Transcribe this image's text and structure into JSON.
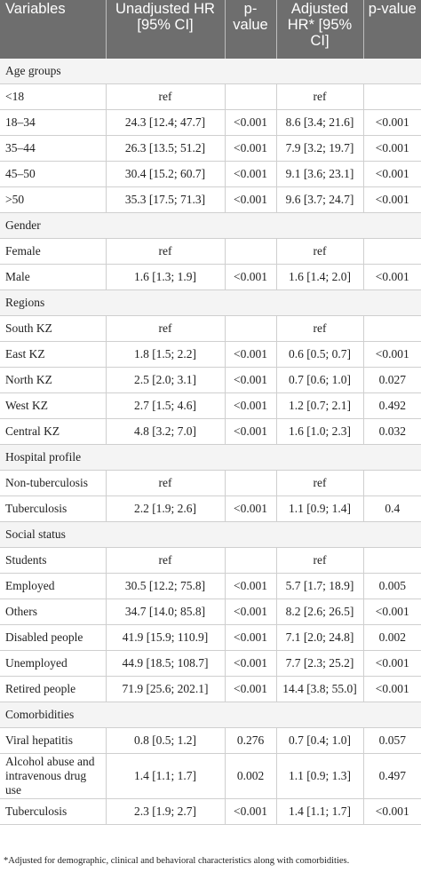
{
  "headers": [
    "Variables",
    "Unadjusted HR [95% CI]",
    "p-value",
    "Adjusted HR* [95% CI]",
    "p-value"
  ],
  "rows": [
    {
      "type": "group",
      "label": "Age groups"
    },
    {
      "type": "data",
      "label": "<18",
      "uhr": "ref",
      "up": "",
      "ahr": "ref",
      "ap": ""
    },
    {
      "type": "data",
      "label": "18–34",
      "uhr": "24.3 [12.4; 47.7]",
      "up": "<0.001",
      "ahr": "8.6 [3.4; 21.6]",
      "ap": "<0.001"
    },
    {
      "type": "data",
      "label": "35–44",
      "uhr": "26.3 [13.5; 51.2]",
      "up": "<0.001",
      "ahr": "7.9 [3.2; 19.7]",
      "ap": "<0.001"
    },
    {
      "type": "data",
      "label": "45–50",
      "uhr": "30.4 [15.2; 60.7]",
      "up": "<0.001",
      "ahr": "9.1 [3.6; 23.1]",
      "ap": "<0.001"
    },
    {
      "type": "data",
      "label": ">50",
      "uhr": "35.3 [17.5; 71.3]",
      "up": "<0.001",
      "ahr": "9.6 [3.7; 24.7]",
      "ap": "<0.001"
    },
    {
      "type": "group",
      "label": "Gender"
    },
    {
      "type": "data",
      "label": "Female",
      "uhr": "ref",
      "up": "",
      "ahr": "ref",
      "ap": ""
    },
    {
      "type": "data",
      "label": "Male",
      "uhr": "1.6 [1.3; 1.9]",
      "up": "<0.001",
      "ahr": "1.6 [1.4; 2.0]",
      "ap": "<0.001"
    },
    {
      "type": "group",
      "label": "Regions"
    },
    {
      "type": "data",
      "label": "South KZ",
      "uhr": "ref",
      "up": "",
      "ahr": "ref",
      "ap": ""
    },
    {
      "type": "data",
      "label": "East KZ",
      "uhr": "1.8 [1.5; 2.2]",
      "up": "<0.001",
      "ahr": "0.6 [0.5; 0.7]",
      "ap": "<0.001"
    },
    {
      "type": "data",
      "label": "North KZ",
      "uhr": "2.5 [2.0; 3.1]",
      "up": "<0.001",
      "ahr": "0.7 [0.6; 1.0]",
      "ap": "0.027"
    },
    {
      "type": "data",
      "label": "West KZ",
      "uhr": "2.7 [1.5; 4.6]",
      "up": "<0.001",
      "ahr": "1.2 [0.7; 2.1]",
      "ap": "0.492"
    },
    {
      "type": "data",
      "label": "Central KZ",
      "uhr": "4.8 [3.2; 7.0]",
      "up": "<0.001",
      "ahr": "1.6 [1.0; 2.3]",
      "ap": "0.032"
    },
    {
      "type": "group",
      "label": "Hospital profile"
    },
    {
      "type": "data",
      "label": "Non-tuberculosis",
      "uhr": "ref",
      "up": "",
      "ahr": "ref",
      "ap": ""
    },
    {
      "type": "data",
      "label": "Tuberculosis",
      "uhr": "2.2 [1.9; 2.6]",
      "up": "<0.001",
      "ahr": "1.1 [0.9; 1.4]",
      "ap": "0.4"
    },
    {
      "type": "group",
      "label": "Social status"
    },
    {
      "type": "data",
      "label": "Students",
      "uhr": "ref",
      "up": "",
      "ahr": "ref",
      "ap": ""
    },
    {
      "type": "data",
      "label": "Employed",
      "uhr": "30.5 [12.2; 75.8]",
      "up": "<0.001",
      "ahr": "5.7 [1.7; 18.9]",
      "ap": "0.005"
    },
    {
      "type": "data",
      "label": "Others",
      "uhr": "34.7 [14.0; 85.8]",
      "up": "<0.001",
      "ahr": "8.2 [2.6; 26.5]",
      "ap": "<0.001"
    },
    {
      "type": "data",
      "label": "Disabled people",
      "uhr": "41.9 [15.9; 110.9]",
      "up": "<0.001",
      "ahr": "7.1 [2.0; 24.8]",
      "ap": "0.002"
    },
    {
      "type": "data",
      "label": "Unemployed",
      "uhr": "44.9 [18.5; 108.7]",
      "up": "<0.001",
      "ahr": "7.7 [2.3; 25.2]",
      "ap": "<0.001"
    },
    {
      "type": "data",
      "label": "Retired people",
      "uhr": "71.9 [25.6; 202.1]",
      "up": "<0.001",
      "ahr": "14.4 [3.8; 55.0]",
      "ap": "<0.001"
    },
    {
      "type": "group",
      "label": "Comorbidities"
    },
    {
      "type": "data",
      "label": "Viral hepatitis",
      "uhr": "0.8 [0.5; 1.2]",
      "up": "0.276",
      "ahr": "0.7 [0.4; 1.0]",
      "ap": "0.057"
    },
    {
      "type": "data",
      "tall": true,
      "label": "Alcohol abuse and intravenous drug use",
      "uhr": "1.4 [1.1; 1.7]",
      "up": "0.002",
      "ahr": "1.1 [0.9; 1.3]",
      "ap": "0.497"
    },
    {
      "type": "data",
      "label": "Tuberculosis",
      "uhr": "2.3 [1.9; 2.7]",
      "up": "<0.001",
      "ahr": "1.4 [1.1; 1.7]",
      "ap": "<0.001"
    }
  ],
  "footnote": "*Adjusted for demographic, clinical and behavioral characteristics along with comorbidities."
}
